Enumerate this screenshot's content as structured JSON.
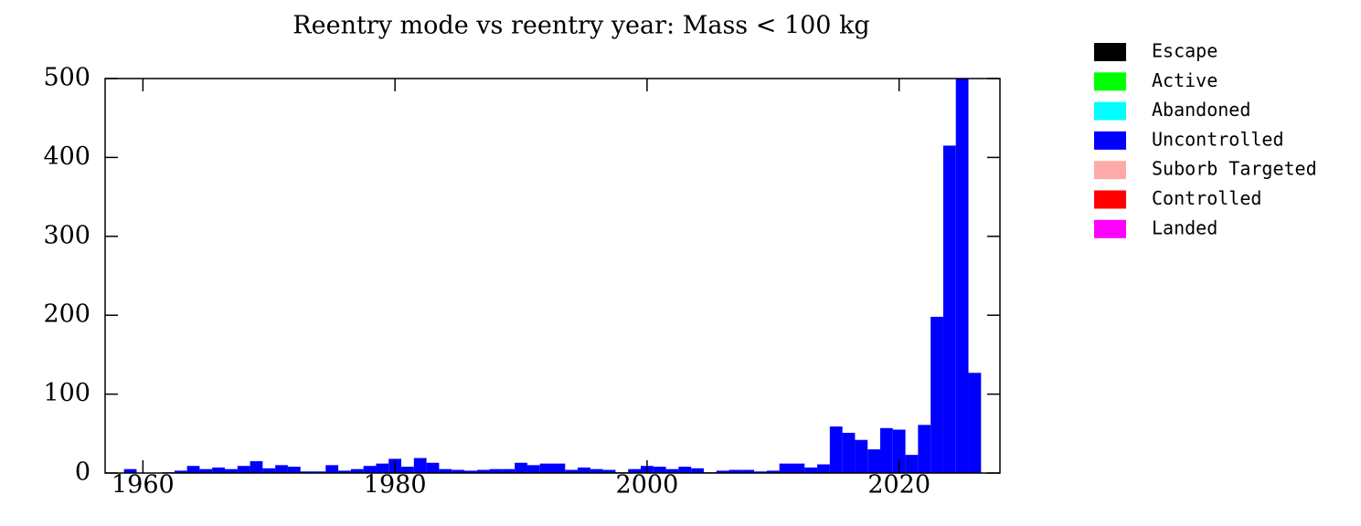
{
  "chart_data": {
    "type": "bar",
    "stacked": true,
    "title": "Reentry mode vs reentry year: Mass < 100 kg",
    "x": [
      1959,
      1960,
      1961,
      1962,
      1963,
      1964,
      1965,
      1966,
      1967,
      1968,
      1969,
      1970,
      1971,
      1972,
      1973,
      1974,
      1975,
      1976,
      1977,
      1978,
      1979,
      1980,
      1981,
      1982,
      1983,
      1984,
      1985,
      1986,
      1987,
      1988,
      1989,
      1990,
      1991,
      1992,
      1993,
      1994,
      1995,
      1996,
      1997,
      1998,
      1999,
      2000,
      2001,
      2002,
      2003,
      2004,
      2005,
      2006,
      2007,
      2008,
      2009,
      2010,
      2011,
      2012,
      2013,
      2014,
      2015,
      2016,
      2017,
      2018,
      2019,
      2020,
      2021,
      2022,
      2023,
      2024,
      2025,
      2026
    ],
    "series": [
      {
        "name": "Escape",
        "color": "#000000"
      },
      {
        "name": "Active",
        "color": "#00ff00"
      },
      {
        "name": "Abandoned",
        "color": "#00ffff"
      },
      {
        "name": "Uncontrolled",
        "color": "#0000ff",
        "values": [
          5,
          0,
          0,
          1,
          3,
          9,
          5,
          7,
          5,
          9,
          15,
          6,
          10,
          8,
          2,
          2,
          10,
          3,
          5,
          9,
          12,
          18,
          8,
          19,
          13,
          5,
          4,
          3,
          4,
          5,
          5,
          13,
          10,
          12,
          12,
          4,
          7,
          5,
          4,
          1,
          5,
          9,
          8,
          5,
          8,
          6,
          1,
          3,
          4,
          4,
          2,
          3,
          12,
          12,
          7,
          11,
          59,
          51,
          42,
          30,
          57,
          55,
          23,
          61,
          198,
          415,
          500,
          127
        ]
      },
      {
        "name": "Suborb Targeted",
        "color": "#ffaaaa"
      },
      {
        "name": "Controlled",
        "color": "#ff0000"
      },
      {
        "name": "Landed",
        "color": "#ff00ff"
      }
    ],
    "xlim": [
      1957,
      2028
    ],
    "xticks": [
      1960,
      1980,
      2000,
      2020
    ],
    "ylim": [
      0,
      500
    ],
    "yticks": [
      0,
      100,
      200,
      300,
      400,
      500
    ]
  }
}
